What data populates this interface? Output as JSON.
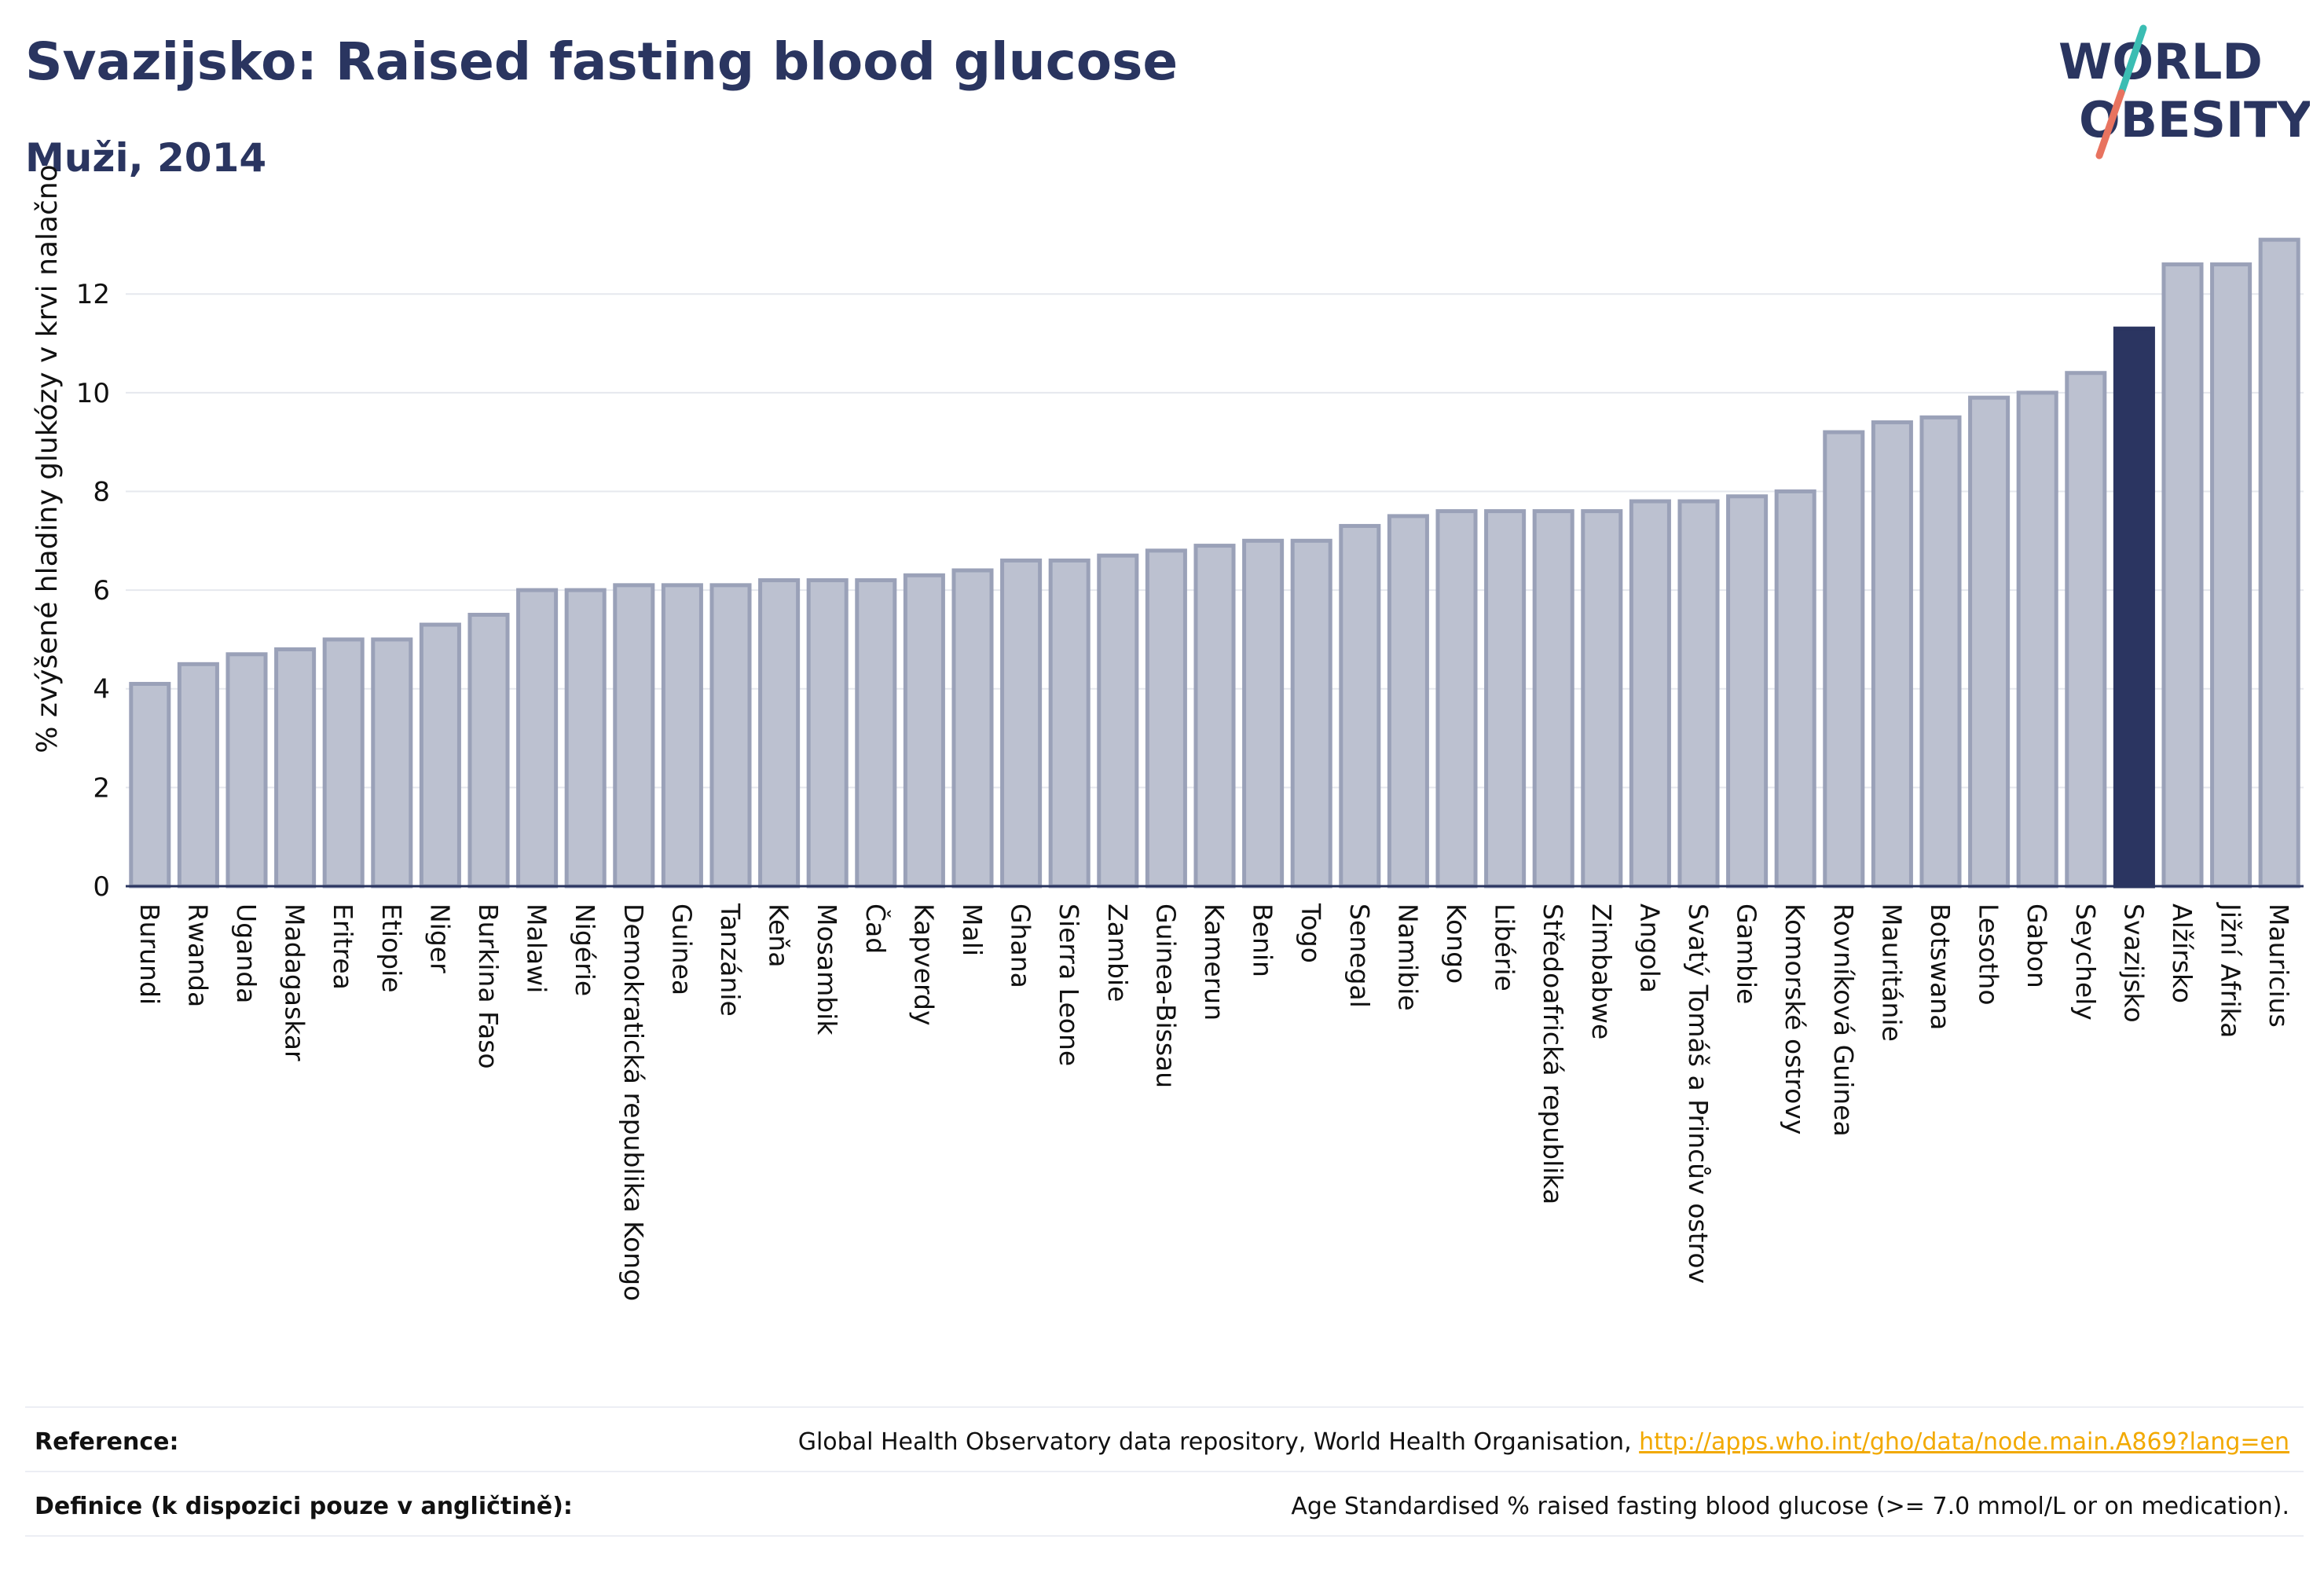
{
  "header": {
    "title": "Svazijsko: Raised fasting blood glucose",
    "subtitle": "Muži, 2014",
    "logo_text_line1": "WORLD",
    "logo_text_line2": "OBESITY"
  },
  "colors": {
    "title": "#2a3560",
    "bar_default": "#bcc1d0",
    "bar_border": "#9aa1b8",
    "bar_highlight": "#2b3561",
    "link": "#f2a900",
    "logo_teal": "#3bbdb3",
    "logo_coral": "#e8735f"
  },
  "chart_data": {
    "type": "bar",
    "ylabel": "% zvýšené hladiny glukózy v krvi nalačno",
    "ylim": [
      0,
      13.5
    ],
    "yticks": [
      0,
      2,
      4,
      6,
      8,
      10,
      12
    ],
    "grid": true,
    "highlight": "Svazijsko",
    "categories": [
      "Burundi",
      "Rwanda",
      "Uganda",
      "Madagaskar",
      "Eritrea",
      "Etiopie",
      "Niger",
      "Burkina Faso",
      "Malawi",
      "Nigérie",
      "Demokratická republika Kongo",
      "Guinea",
      "Tanzánie",
      "Keňa",
      "Mosambik",
      "Čad",
      "Kapverdy",
      "Mali",
      "Ghana",
      "Sierra Leone",
      "Zambie",
      "Guinea-Bissau",
      "Kamerun",
      "Benin",
      "Togo",
      "Senegal",
      "Namibie",
      "Kongo",
      "Libérie",
      "Středoafrická republika",
      "Zimbabwe",
      "Angola",
      "Svatý Tomáš a Princův ostrov",
      "Gambie",
      "Komorské ostrovy",
      "Rovníková Guinea",
      "Mauritánie",
      "Botswana",
      "Lesotho",
      "Gabon",
      "Seychely",
      "Svazijsko",
      "Alžírsko",
      "Jižní Afrika",
      "Mauricius"
    ],
    "values": [
      4.1,
      4.5,
      4.7,
      4.8,
      5.0,
      5.0,
      5.3,
      5.5,
      6.0,
      6.0,
      6.1,
      6.1,
      6.1,
      6.2,
      6.2,
      6.2,
      6.3,
      6.4,
      6.6,
      6.6,
      6.7,
      6.8,
      6.9,
      7.0,
      7.0,
      7.3,
      7.5,
      7.6,
      7.6,
      7.6,
      7.6,
      7.8,
      7.8,
      7.9,
      8.0,
      9.2,
      9.4,
      9.5,
      9.9,
      10.0,
      10.4,
      11.3,
      12.6,
      12.6,
      13.1
    ]
  },
  "footer": {
    "reference_label": "Reference:",
    "reference_text": "Global Health Observatory data repository, World Health Organisation, ",
    "reference_link": "http://apps.who.int/gho/data/node.main.A869?lang=en",
    "definition_label": "Definice (k dispozici pouze v angličtině):",
    "definition_text": "Age Standardised % raised fasting blood glucose (>= 7.0 mmol/L or on medication)."
  }
}
